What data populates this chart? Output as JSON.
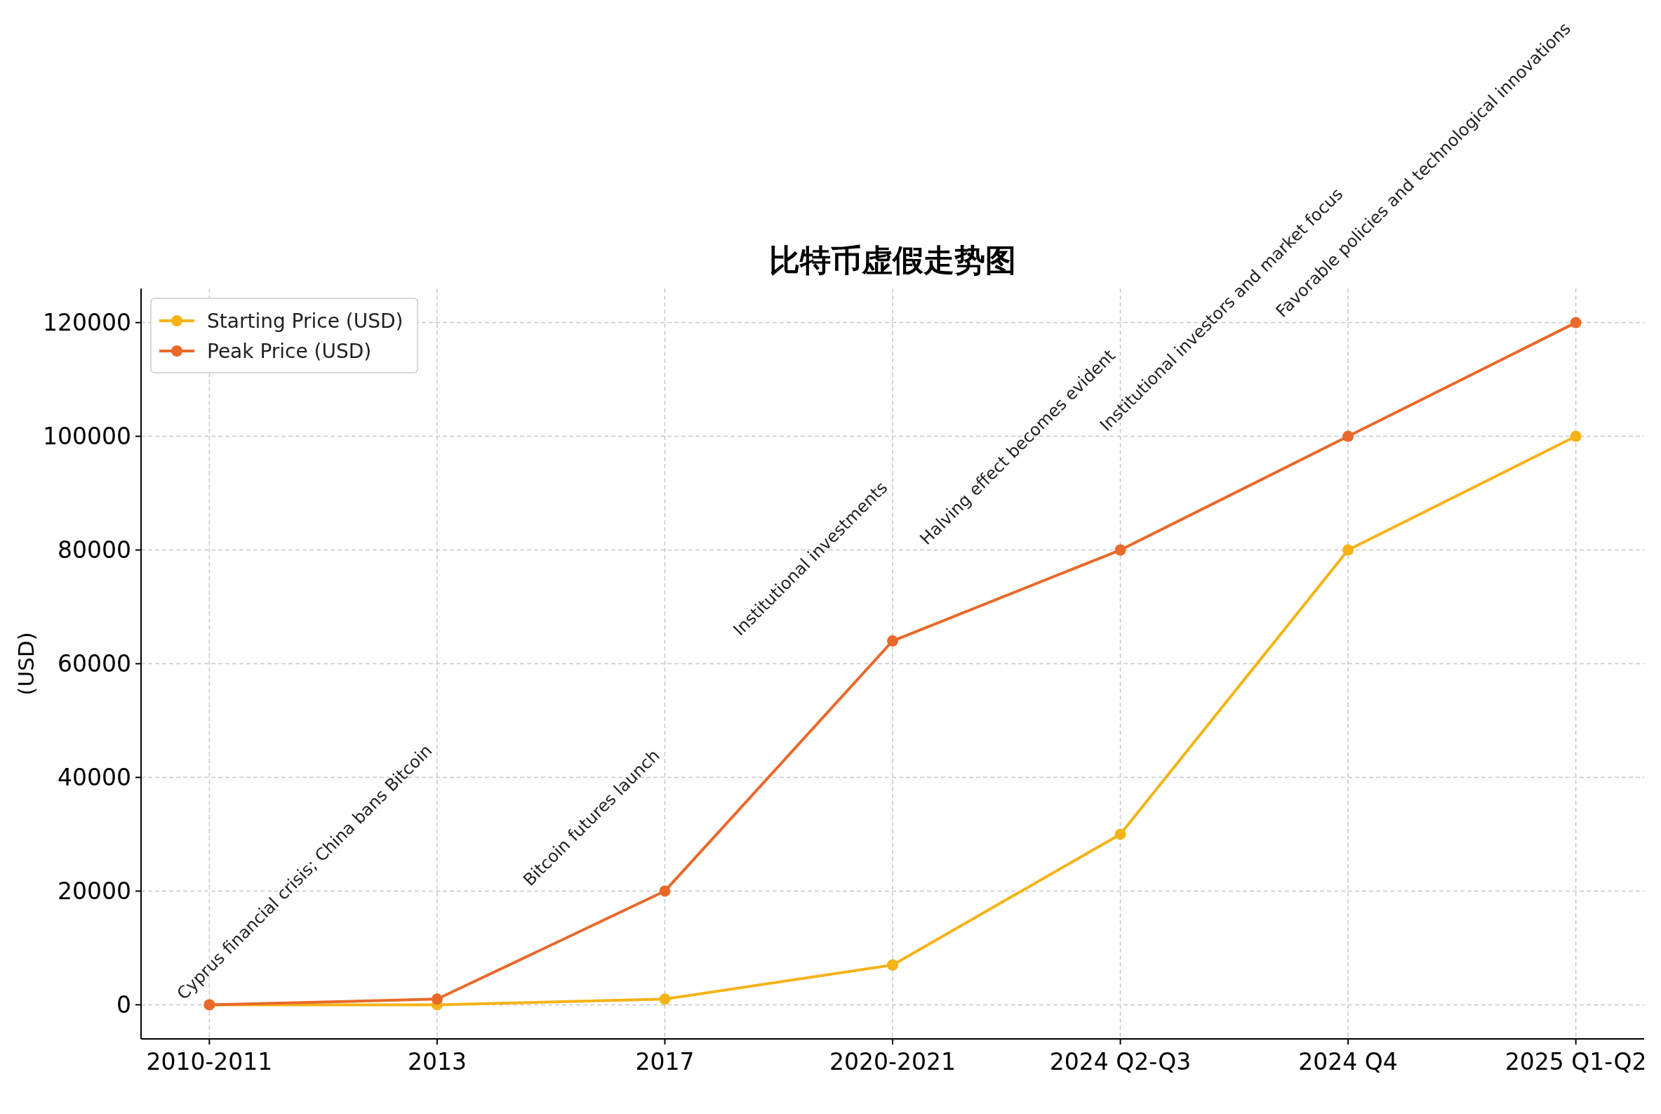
{
  "chart_data": {
    "type": "line",
    "title": "比特币虚假走势图",
    "ylabel": "(USD)",
    "categories": [
      "2010-2011",
      "2013",
      "2017",
      "2020-2021",
      "2024 Q2-Q3",
      "2024 Q4",
      "2025 Q1-Q2"
    ],
    "series": [
      {
        "name": "Starting Price (USD)",
        "color": "#f5b316",
        "values": [
          0,
          0,
          1000,
          7000,
          30000,
          80000,
          100000
        ]
      },
      {
        "name": "Peak Price (USD)",
        "color": "#e8692a",
        "values": [
          0,
          1000,
          20000,
          64000,
          80000,
          100000,
          120000
        ]
      }
    ],
    "annotations": [
      {
        "text": "Cyprus financial crisis; China bans Bitcoin",
        "x": "2013",
        "y": 0
      },
      {
        "text": "Bitcoin futures launch",
        "x": "2017",
        "y": 20000
      },
      {
        "text": "Institutional investments",
        "x": "2020-2021",
        "y": 64000
      },
      {
        "text": "Halving effect becomes evident",
        "x": "2024 Q2-Q3",
        "y": 80000
      },
      {
        "text": "Institutional investors and market focus",
        "x": "2024 Q4",
        "y": 100000
      },
      {
        "text": "Favorable policies and technological innovations",
        "x": "2025 Q1-Q2",
        "y": 120000
      }
    ],
    "ylim": [
      -6000,
      126000
    ],
    "yticks": [
      0,
      20000,
      40000,
      60000,
      80000,
      100000,
      120000
    ],
    "grid": true,
    "legend": "top left",
    "marker": "circle",
    "line_style": "solid"
  }
}
